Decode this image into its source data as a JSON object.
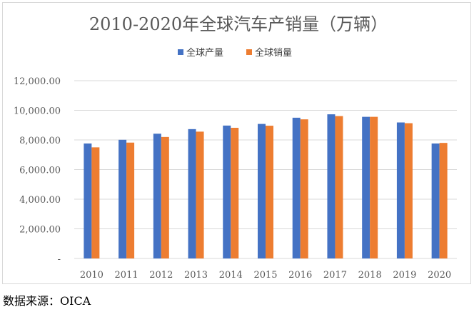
{
  "chart_data": {
    "type": "bar",
    "title": "2010-2020年全球汽车产销量（万辆）",
    "categories": [
      "2010",
      "2011",
      "2012",
      "2013",
      "2014",
      "2015",
      "2016",
      "2017",
      "2018",
      "2019",
      "2020"
    ],
    "series": [
      {
        "name": "全球产量",
        "color": "#4472c4",
        "values": [
          7760,
          8010,
          8420,
          8730,
          8970,
          9080,
          9500,
          9730,
          9560,
          9180,
          7760
        ]
      },
      {
        "name": "全球销量",
        "color": "#ed7d31",
        "values": [
          7500,
          7820,
          8200,
          8560,
          8820,
          8960,
          9390,
          9610,
          9560,
          9130,
          7800
        ]
      }
    ],
    "ylim": [
      0,
      12000
    ],
    "yticks": [
      0,
      2000,
      4000,
      6000,
      8000,
      10000,
      12000
    ],
    "ytick_labels": [
      "-",
      "2,000.00",
      "4,000.00",
      "6,000.00",
      "8,000.00",
      "10,000.00",
      "12,000.00"
    ],
    "xlabel": "",
    "ylabel": "",
    "legend_position": "top-center",
    "grid": true
  },
  "source_note": "数据来源：OICA"
}
